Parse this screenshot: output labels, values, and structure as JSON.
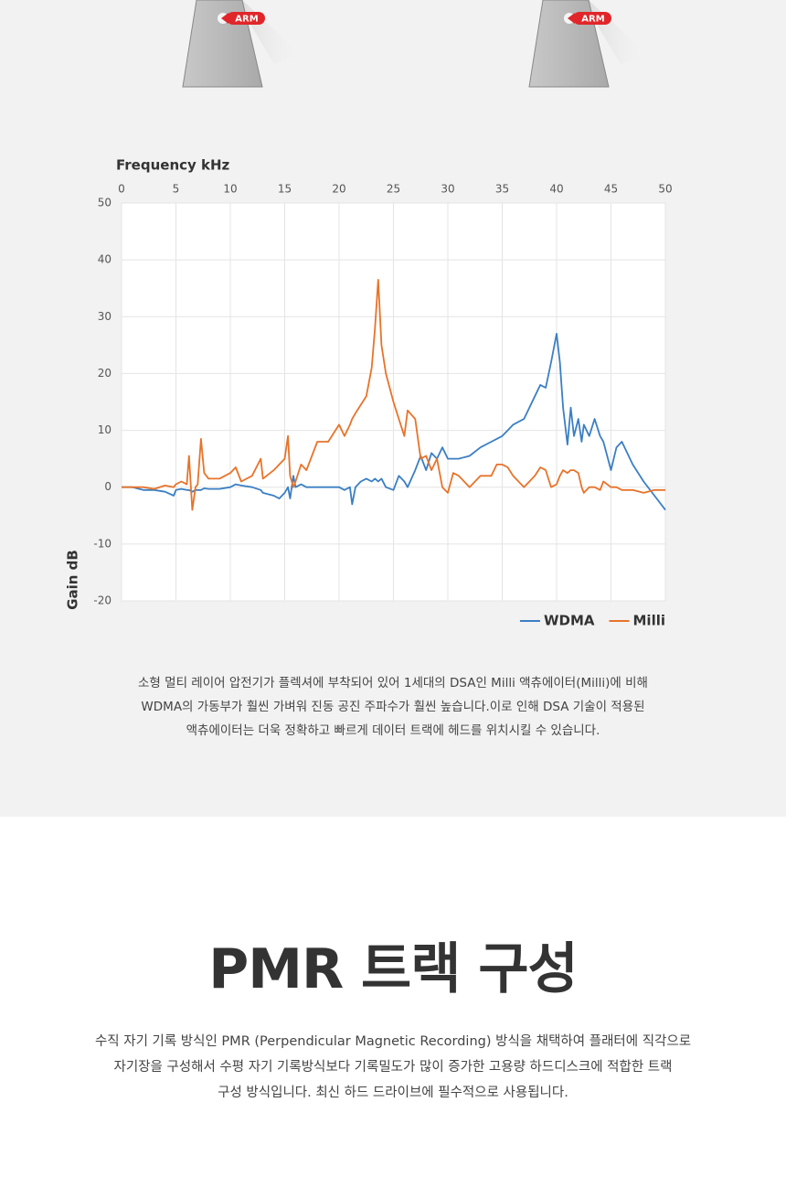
{
  "header_images": [
    {
      "label": "ARM"
    },
    {
      "label": "ARM"
    }
  ],
  "chart_data": {
    "type": "line",
    "x_label": "Frequency kHz",
    "y_label": "Gain dB",
    "x": [
      0,
      1,
      2,
      3,
      4,
      4.8,
      5,
      5.5,
      6,
      6.2,
      6.5,
      6.8,
      7,
      7.3,
      7.6,
      8,
      9,
      10,
      10.5,
      11,
      12,
      12.8,
      13,
      14,
      14.5,
      15,
      15.3,
      15.5,
      15.8,
      16,
      16.5,
      17,
      18,
      19,
      20,
      20.5,
      21,
      21.2,
      21.5,
      22,
      22.5,
      23,
      23.3,
      23.6,
      23.9,
      24.3,
      25,
      25.5,
      26,
      26.3,
      27,
      27.5,
      28,
      28.5,
      29,
      29.5,
      30,
      30.5,
      31,
      32,
      33,
      34,
      34.5,
      35,
      35.5,
      36,
      37,
      38,
      38.5,
      39,
      39.5,
      40,
      40.3,
      40.6,
      41,
      41.3,
      41.6,
      42,
      42.3,
      42.5,
      43,
      43.5,
      44,
      44.3,
      45,
      45.5,
      46,
      47,
      48,
      49,
      50
    ],
    "series": [
      {
        "name": "WDMA",
        "color": "#3a7fc4",
        "values": [
          0,
          0,
          -0.5,
          -0.5,
          -0.8,
          -1.5,
          -0.5,
          -0.3,
          -0.5,
          -0.5,
          -0.8,
          -0.5,
          -0.5,
          -0.5,
          -0.2,
          -0.3,
          -0.3,
          0,
          0.5,
          0.3,
          0,
          -0.5,
          -1,
          -1.5,
          -2,
          -1,
          0,
          -2,
          2,
          0,
          0.5,
          0,
          0,
          0,
          0,
          -0.5,
          0,
          -3,
          0,
          1,
          1.5,
          1,
          1.5,
          1,
          1.5,
          0,
          -0.5,
          2,
          1,
          0,
          3,
          5.5,
          3,
          6,
          5,
          7,
          5,
          5,
          5,
          5.5,
          7,
          8,
          8.5,
          9,
          10,
          11,
          12,
          16,
          18,
          17.5,
          22,
          27,
          22,
          14,
          7.5,
          14,
          9,
          12,
          8,
          11,
          9,
          12,
          9,
          8,
          3,
          7,
          8,
          4,
          1,
          -1.5,
          -4
        ]
      },
      {
        "name": "Milli",
        "color": "#e8732a",
        "values": [
          0,
          0,
          0,
          -0.3,
          0.3,
          0,
          0.5,
          1,
          0.5,
          5.5,
          -4,
          0,
          0.5,
          8.5,
          2.5,
          1.5,
          1.5,
          2.5,
          3.5,
          1,
          2,
          5,
          1.5,
          3,
          4,
          5,
          9,
          2,
          0,
          1,
          4,
          3,
          8,
          8,
          11,
          9,
          11,
          12,
          13,
          14.5,
          16,
          21,
          28,
          36.5,
          25,
          20,
          15,
          12,
          9,
          13.5,
          12,
          5,
          5.5,
          3,
          5,
          0,
          -1,
          2.5,
          2,
          0,
          2,
          2,
          4,
          4,
          3.5,
          2,
          0,
          2,
          3.5,
          3,
          0,
          0.5,
          2,
          3,
          2.5,
          3,
          3,
          2.5,
          0,
          -1,
          0,
          0,
          -0.5,
          1,
          0,
          0,
          -0.5,
          -0.5,
          -1,
          -0.5,
          -0.5
        ]
      }
    ],
    "xlim": [
      0,
      50
    ],
    "xticks": [
      0,
      5,
      10,
      15,
      20,
      25,
      30,
      35,
      40,
      45,
      50
    ],
    "ylim": [
      -20,
      50
    ],
    "yticks": [
      -20,
      -10,
      0,
      10,
      20,
      30,
      40,
      50
    ],
    "grid": true,
    "legend": "bottom-right"
  },
  "caption": [
    "소형 멀티 레이어 압전기가 플렉셔에 부착되어 있어 1세대의 DSA인 Milli 액츄에이터(Milli)에 비해",
    "WDMA의 가동부가 훨씬 가벼워 진동 공진 주파수가 훨씬 높습니다.이로 인해 DSA 기술이 적용된",
    "액츄에이터는 더욱 정확하고 빠르게 데이터 트랙에 헤드를 위치시킬 수 있습니다."
  ],
  "section": {
    "title": "PMR 트랙 구성",
    "text": [
      "수직 자기 기록 방식인 PMR (Perpendicular Magnetic Recording) 방식을 채택하여 플래터에 직각으로",
      "자기장을 구성해서 수평 자기 기록방식보다 기록밀도가 많이 증가한 고용량 하드디스크에 적합한 트랙",
      "구성 방식입니다. 최신 하드 드라이브에 필수적으로 사용됩니다."
    ]
  }
}
